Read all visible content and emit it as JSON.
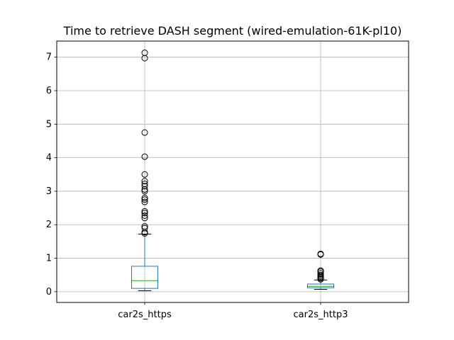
{
  "chart_data": {
    "type": "box",
    "title": "Time to retrieve DASH segment (wired-emulation-61K-pl10)",
    "xlabel": "",
    "ylabel": "",
    "categories": [
      "car2s_https",
      "car2s_http3"
    ],
    "ylim": [
      -0.32,
      7.48
    ],
    "yticks": [
      0,
      1,
      2,
      3,
      4,
      5,
      6,
      7
    ],
    "grid": true,
    "boxes": [
      {
        "name": "car2s_https",
        "whislo": 0.03,
        "q1": 0.1,
        "median": 0.33,
        "q3": 0.76,
        "whishi": 1.72,
        "fliers": [
          1.74,
          1.78,
          1.9,
          1.95,
          2.2,
          2.27,
          2.35,
          2.4,
          2.68,
          2.75,
          2.8,
          3.0,
          3.05,
          3.15,
          3.22,
          3.3,
          3.5,
          4.03,
          4.75,
          6.97,
          7.13
        ]
      },
      {
        "name": "car2s_http3",
        "whislo": 0.07,
        "q1": 0.12,
        "median": 0.16,
        "q3": 0.23,
        "whishi": 0.35,
        "fliers": [
          0.37,
          0.4,
          0.43,
          0.46,
          0.5,
          0.55,
          0.6,
          0.63,
          1.11,
          1.13
        ]
      }
    ],
    "colors": {
      "box": "#1f77b4",
      "median": "#2ca02c",
      "grid": "#b0b0b0",
      "flier": "#000000"
    }
  }
}
